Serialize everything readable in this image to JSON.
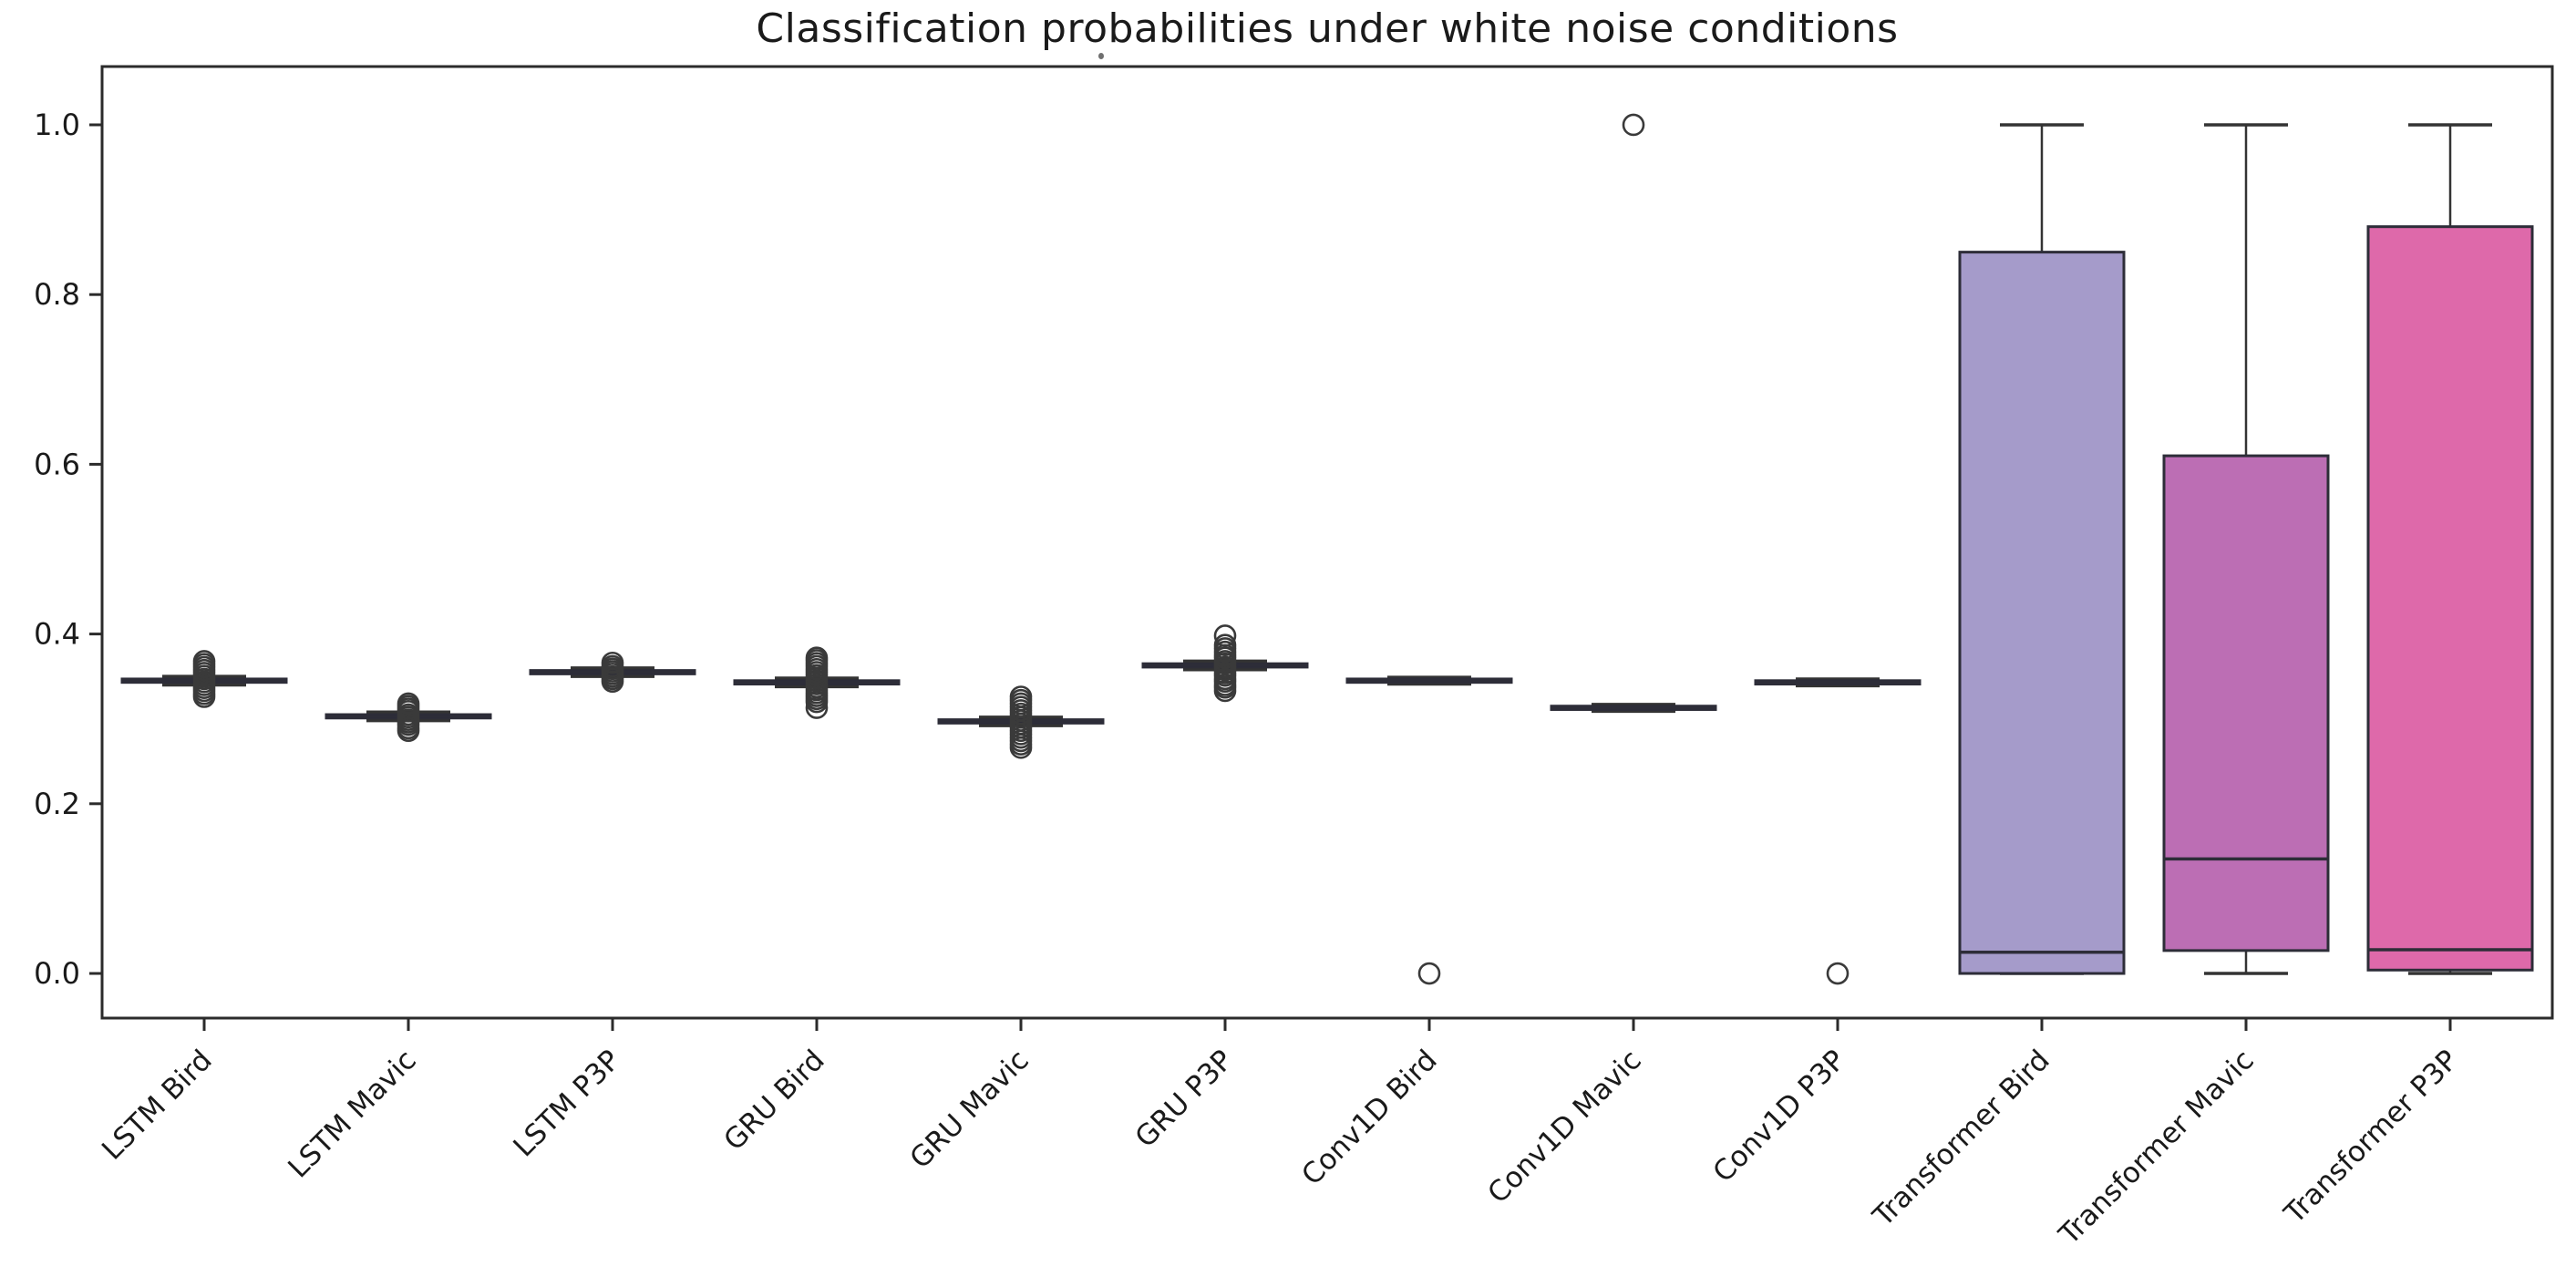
{
  "header": {
    "title": "Classification probabilities under white noise conditions"
  },
  "chart_data": {
    "type": "box",
    "title": "Classification probabilities under white noise conditions",
    "xlabel": "",
    "ylabel": "",
    "grid": false,
    "legend": "none",
    "ylim": [
      -0.0526,
      1.0687
    ],
    "yticks": [
      0.0,
      0.2,
      0.4,
      0.6,
      0.8,
      1.0
    ],
    "categories": [
      "LSTM Bird",
      "LSTM Mavic",
      "LSTM P3P",
      "GRU Bird",
      "GRU Mavic",
      "GRU P3P",
      "Conv1D Bird",
      "Conv1D Mavic",
      "Conv1D P3P",
      "Transformer Bird",
      "Transformer Mavic",
      "Transformer P3P"
    ],
    "boxes": [
      {
        "label": "LSTM Bird",
        "median": 0.345,
        "q1": 0.343,
        "q3": 0.347,
        "whisker_low": 0.34,
        "whisker_high": 0.35,
        "color": "#9b93c6",
        "outliers": [
          0.326,
          0.3295,
          0.333,
          0.3365,
          0.34,
          0.3435,
          0.347,
          0.3505,
          0.354,
          0.3575,
          0.361,
          0.3645,
          0.368
        ]
      },
      {
        "label": "LSTM Mavic",
        "median": 0.303,
        "q1": 0.301,
        "q3": 0.305,
        "whisker_low": 0.298,
        "whisker_high": 0.308,
        "color": "#9b93c6",
        "outliers": [
          0.286,
          0.289,
          0.293,
          0.296,
          0.299,
          0.302,
          0.305,
          0.309,
          0.312,
          0.315,
          0.318
        ]
      },
      {
        "label": "LSTM P3P",
        "median": 0.355,
        "q1": 0.353,
        "q3": 0.357,
        "whisker_low": 0.35,
        "whisker_high": 0.36,
        "color": "#9b93c6",
        "outliers": [
          0.344,
          0.347,
          0.35,
          0.353,
          0.356,
          0.359,
          0.362,
          0.366
        ]
      },
      {
        "label": "GRU Bird",
        "median": 0.343,
        "q1": 0.341,
        "q3": 0.345,
        "whisker_low": 0.338,
        "whisker_high": 0.348,
        "color": "#a588c2",
        "outliers": [
          0.313,
          0.32,
          0.3235,
          0.327,
          0.3305,
          0.334,
          0.3375,
          0.341,
          0.3445,
          0.348,
          0.3515,
          0.355,
          0.3585,
          0.362,
          0.3655,
          0.369,
          0.372
        ]
      },
      {
        "label": "GRU Mavic",
        "median": 0.297,
        "q1": 0.295,
        "q3": 0.299,
        "whisker_low": 0.292,
        "whisker_high": 0.302,
        "color": "#a588c2",
        "outliers": [
          0.266,
          0.27,
          0.274,
          0.278,
          0.282,
          0.286,
          0.29,
          0.294,
          0.298,
          0.302,
          0.306,
          0.31,
          0.314,
          0.318,
          0.322,
          0.326
        ]
      },
      {
        "label": "GRU P3P",
        "median": 0.363,
        "q1": 0.361,
        "q3": 0.365,
        "whisker_low": 0.358,
        "whisker_high": 0.368,
        "color": "#a588c2",
        "outliers": [
          0.333,
          0.337,
          0.34,
          0.344,
          0.347,
          0.351,
          0.354,
          0.358,
          0.361,
          0.365,
          0.368,
          0.372,
          0.375,
          0.379,
          0.383,
          0.387,
          0.398
        ]
      },
      {
        "label": "Conv1D Bird",
        "median": 0.345,
        "q1": 0.343,
        "q3": 0.347,
        "whisker_low": 0.341,
        "whisker_high": 0.349,
        "color": "#b27bbd",
        "outliers": [
          0.0
        ]
      },
      {
        "label": "Conv1D Mavic",
        "median": 0.313,
        "q1": 0.311,
        "q3": 0.315,
        "whisker_low": 0.309,
        "whisker_high": 0.317,
        "color": "#b27bbd",
        "outliers": [
          1.0
        ]
      },
      {
        "label": "Conv1D P3P",
        "median": 0.343,
        "q1": 0.341,
        "q3": 0.345,
        "whisker_low": 0.339,
        "whisker_high": 0.347,
        "color": "#b27bbd",
        "outliers": [
          0.0
        ]
      },
      {
        "label": "Transformer Bird",
        "median": 0.025,
        "q1": 0.0,
        "q3": 0.85,
        "whisker_low": 0.0,
        "whisker_high": 1.0,
        "color": "#a59bca",
        "outliers": []
      },
      {
        "label": "Transformer Mavic",
        "median": 0.135,
        "q1": 0.027,
        "q3": 0.61,
        "whisker_low": 0.0,
        "whisker_high": 1.0,
        "color": "#bc6eb4",
        "outliers": []
      },
      {
        "label": "Transformer P3P",
        "median": 0.028,
        "q1": 0.004,
        "q3": 0.88,
        "whisker_low": 0.0,
        "whisker_high": 1.0,
        "color": "#de69aa",
        "outliers": []
      }
    ],
    "style": {
      "edge_color": "#2d2d38",
      "whisker_color": "#333333",
      "flier_edge_color": "#3a3a3a",
      "spine_color": "#2b2b2b",
      "tick_label_color": "#1a1a1a"
    },
    "layout_hints": {
      "x_tick_rotation_deg": 45,
      "legend_position": "none",
      "grid_on": false
    }
  }
}
